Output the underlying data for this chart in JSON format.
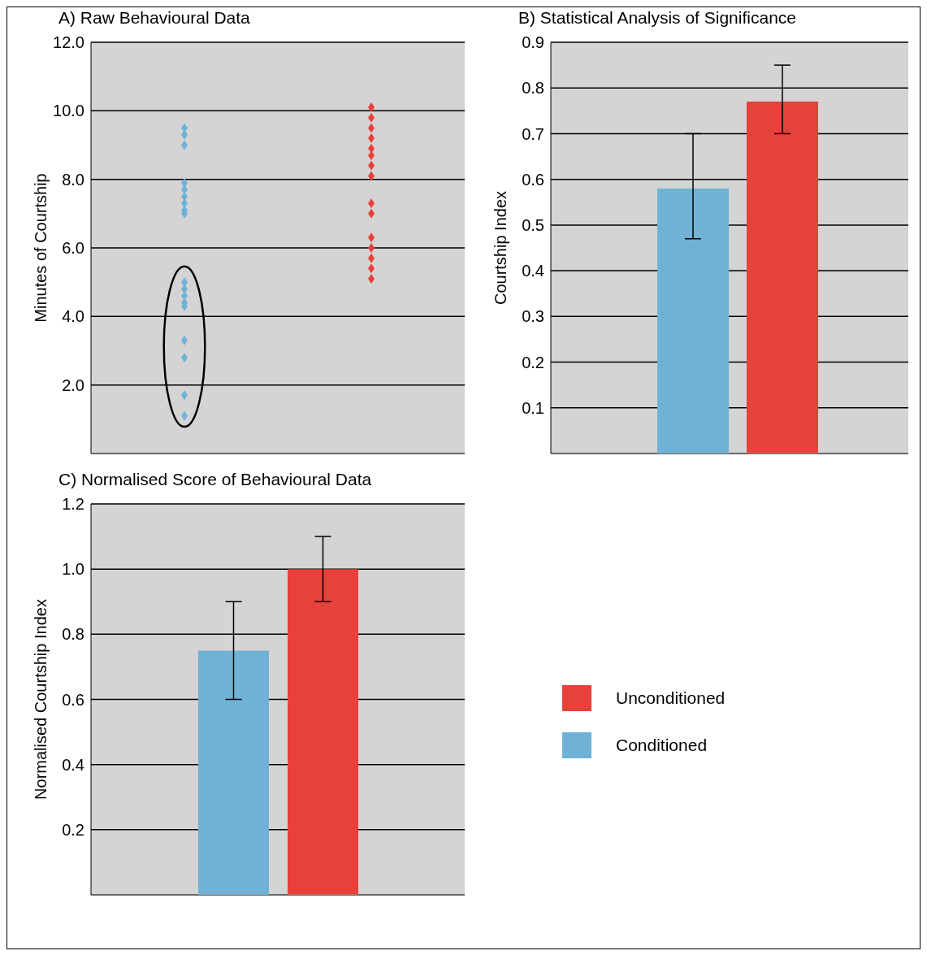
{
  "chart_data": [
    {
      "type": "scatter",
      "title": "A) Raw Behavioural Data",
      "ylabel": "Minutes of Courtship",
      "categories": [
        null,
        null
      ],
      "ylim": [
        0,
        12
      ],
      "yticks": [
        {
          "value": 2,
          "label": "2.0"
        },
        {
          "value": 4,
          "label": "4.0"
        },
        {
          "value": 6,
          "label": "6.0"
        },
        {
          "value": 8,
          "label": "8.0"
        },
        {
          "value": 10,
          "label": "10.0"
        },
        {
          "value": 12,
          "label": "12.0"
        }
      ],
      "grid": "y",
      "marker": "diamond",
      "series": [
        {
          "colors": [
            "#6fb2d6",
            "#e8403a"
          ],
          "values": [
            9.5,
            10.1
          ]
        },
        {
          "colors": [
            "#6fb2d6",
            "#e8403a"
          ],
          "values": [
            9.3,
            9.8
          ]
        },
        {
          "colors": [
            "#6fb2d6",
            "#e8403a"
          ],
          "values": [
            9.0,
            9.5
          ]
        },
        {
          "colors": [
            "#6fb2d6",
            "#e8403a"
          ],
          "values": [
            7.9,
            9.2
          ]
        },
        {
          "colors": [
            "#6fb2d6",
            "#e8403a"
          ],
          "values": [
            7.7,
            8.9
          ]
        },
        {
          "colors": [
            "#6fb2d6",
            "#e8403a"
          ],
          "values": [
            7.5,
            8.7
          ]
        },
        {
          "colors": [
            "#6fb2d6",
            "#e8403a"
          ],
          "values": [
            7.3,
            8.4
          ]
        },
        {
          "colors": [
            "#6fb2d6",
            "#e8403a"
          ],
          "values": [
            7.1,
            8.1
          ]
        },
        {
          "colors": [
            "#6fb2d6",
            "#e8403a"
          ],
          "values": [
            7.0,
            7.3
          ]
        },
        {
          "colors": [
            "#6fb2d6",
            "#e8403a"
          ],
          "values": [
            5.0,
            7.0
          ]
        },
        {
          "colors": [
            "#6fb2d6",
            "#e8403a"
          ],
          "values": [
            4.8,
            6.3
          ]
        },
        {
          "colors": [
            "#6fb2d6",
            "#e8403a"
          ],
          "values": [
            4.6,
            6.0
          ]
        },
        {
          "colors": [
            "#6fb2d6",
            "#e8403a"
          ],
          "values": [
            4.4,
            5.7
          ]
        },
        {
          "colors": [
            "#6fb2d6",
            "#e8403a"
          ],
          "values": [
            4.3,
            5.4
          ]
        },
        {
          "colors": [
            "#6fb2d6",
            "#e8403a"
          ],
          "values": [
            3.3,
            5.1
          ]
        },
        {
          "colors": [
            "#6fb2d6",
            "#e8403a"
          ],
          "values": [
            2.8,
            null
          ]
        },
        {
          "colors": [
            "#6fb2d6",
            "#e8403a"
          ],
          "values": [
            1.7,
            null
          ]
        },
        {
          "colors": [
            "#6fb2d6",
            "#e8403a"
          ],
          "values": [
            1.1,
            null
          ]
        }
      ]
    },
    {
      "type": "bar",
      "title": "B) Statistical Analysis of Significance",
      "ylabel": "Courtship Index",
      "categories": [
        null,
        null
      ],
      "values": [
        0.58,
        0.77
      ],
      "colors": [
        "#6fb2d6",
        "#e8403a"
      ],
      "errors": [
        [
          0.47,
          0.7
        ],
        [
          0.7,
          0.85
        ]
      ],
      "ylim": [
        0,
        0.9
      ],
      "yticks": [
        0.1,
        0.2,
        0.3,
        0.4,
        0.5,
        0.6,
        0.7,
        0.8,
        0.9
      ],
      "grid": "y"
    },
    {
      "type": "bar",
      "title": "C) Normalised Score of Behavioural Data",
      "ylabel": "Normalised Courtship Index",
      "categories": [
        null
      ],
      "ylim": [
        0,
        1.2
      ],
      "yticks": [
        0.2,
        0.4,
        0.6,
        0.8,
        {
          "value": 1,
          "label": "1.0"
        },
        1.2
      ],
      "grid": "y",
      "legend": "right",
      "series": [
        {
          "name": "Conditioned",
          "color": "#6fb2d6",
          "values": [
            0.75
          ],
          "errors": [
            [
              0.6,
              0.9
            ]
          ]
        },
        {
          "name": "Unconditioned",
          "color": "#e8403a",
          "values": [
            1.0
          ],
          "errors": [
            [
              0.9,
              1.1
            ]
          ]
        }
      ]
    }
  ]
}
